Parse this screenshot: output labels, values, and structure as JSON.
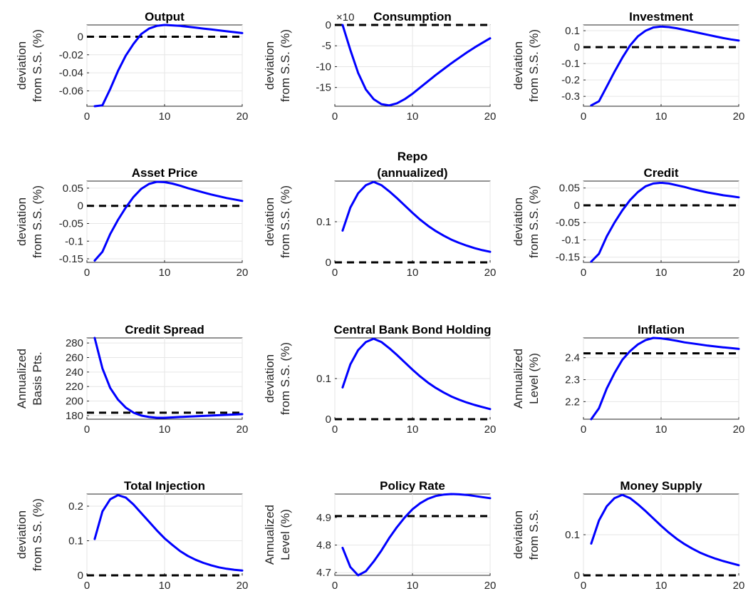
{
  "colors": {
    "series": "#0000ff",
    "reference": "#000000"
  },
  "chart_data": [
    {
      "type": "line",
      "title": [
        "Output"
      ],
      "ylabel": [
        "deviation",
        "from S.S. (%)"
      ],
      "xlim": [
        0,
        20
      ],
      "ylim": [
        -0.077,
        0.013
      ],
      "xticks": [
        0,
        10,
        20
      ],
      "xtick_labels": [
        "0",
        "10",
        "20"
      ],
      "yticks": [
        -0.06,
        -0.04,
        -0.02,
        0
      ],
      "ytick_labels": [
        "-0.06",
        "-0.04",
        "-0.02",
        "0"
      ],
      "grid": true,
      "exponent_label": "",
      "reference": 0,
      "series": [
        {
          "x": [
            1,
            2,
            3,
            4,
            5,
            6,
            7,
            8,
            9,
            10,
            11,
            12,
            13,
            14,
            15,
            16,
            17,
            18,
            19,
            20
          ],
          "y": [
            -0.077,
            -0.076,
            -0.058,
            -0.038,
            -0.021,
            -0.008,
            0.003,
            0.009,
            0.012,
            0.013,
            0.0125,
            0.012,
            0.011,
            0.01,
            0.009,
            0.008,
            0.007,
            0.006,
            0.005,
            0.004
          ]
        }
      ]
    },
    {
      "type": "line",
      "title": [
        "Consumption"
      ],
      "ylabel": [
        "deviation",
        "from S.S. (%)"
      ],
      "xlim": [
        0,
        20
      ],
      "ylim": [
        -19.5,
        0
      ],
      "xticks": [
        0,
        10,
        20
      ],
      "xtick_labels": [
        "0",
        "10",
        "20"
      ],
      "yticks": [
        -15,
        -10,
        -5,
        0
      ],
      "ytick_labels": [
        "-15",
        "-10",
        "-5",
        "0"
      ],
      "grid": true,
      "exponent_label": "×10",
      "reference": 0,
      "series": [
        {
          "x": [
            1,
            2,
            3,
            4,
            5,
            6,
            7,
            8,
            9,
            10,
            11,
            12,
            13,
            14,
            15,
            16,
            17,
            18,
            19,
            20
          ],
          "y": [
            0,
            -6,
            -11.5,
            -15.5,
            -17.8,
            -19,
            -19.3,
            -18.8,
            -17.8,
            -16.5,
            -15,
            -13.5,
            -12,
            -10.6,
            -9.2,
            -7.9,
            -6.6,
            -5.4,
            -4.3,
            -3.2
          ]
        }
      ]
    },
    {
      "type": "line",
      "title": [
        "Investment"
      ],
      "ylabel": [
        "deviation",
        "from S.S. (%)"
      ],
      "xlim": [
        0,
        20
      ],
      "ylim": [
        -0.36,
        0.135
      ],
      "xticks": [
        0,
        10,
        20
      ],
      "xtick_labels": [
        "0",
        "10",
        "20"
      ],
      "yticks": [
        -0.3,
        -0.2,
        -0.1,
        0,
        0.1
      ],
      "ytick_labels": [
        "-0.3",
        "-0.2",
        "-0.1",
        "0",
        "0.1"
      ],
      "grid": true,
      "exponent_label": "",
      "reference": 0,
      "series": [
        {
          "x": [
            1,
            2,
            3,
            4,
            5,
            6,
            7,
            8,
            9,
            10,
            11,
            12,
            13,
            14,
            15,
            16,
            17,
            18,
            19,
            20
          ],
          "y": [
            -0.355,
            -0.33,
            -0.24,
            -0.15,
            -0.065,
            0.01,
            0.065,
            0.1,
            0.12,
            0.125,
            0.122,
            0.115,
            0.105,
            0.095,
            0.085,
            0.075,
            0.065,
            0.055,
            0.047,
            0.04
          ]
        }
      ]
    },
    {
      "type": "line",
      "title": [
        "Asset Price"
      ],
      "ylabel": [
        "deviation",
        "from S.S. (%)"
      ],
      "xlim": [
        0,
        20
      ],
      "ylim": [
        -0.16,
        0.07
      ],
      "xticks": [
        0,
        10,
        20
      ],
      "xtick_labels": [
        "0",
        "10",
        "20"
      ],
      "yticks": [
        -0.15,
        -0.1,
        -0.05,
        0,
        0.05
      ],
      "ytick_labels": [
        "-0.15",
        "-0.1",
        "-0.05",
        "0",
        "0.05"
      ],
      "grid": true,
      "exponent_label": "",
      "reference": 0,
      "series": [
        {
          "x": [
            1,
            2,
            3,
            4,
            5,
            6,
            7,
            8,
            9,
            10,
            11,
            12,
            13,
            14,
            15,
            16,
            17,
            18,
            19,
            20
          ],
          "y": [
            -0.155,
            -0.13,
            -0.08,
            -0.04,
            -0.005,
            0.025,
            0.048,
            0.062,
            0.068,
            0.067,
            0.063,
            0.057,
            0.05,
            0.044,
            0.038,
            0.032,
            0.027,
            0.022,
            0.018,
            0.014
          ]
        }
      ]
    },
    {
      "type": "line",
      "title": [
        "Repo",
        "(annualized)"
      ],
      "ylabel": [
        "deviation",
        "from S.S. (%)"
      ],
      "xlim": [
        0,
        20
      ],
      "ylim": [
        0,
        0.2
      ],
      "xticks": [
        0,
        10,
        20
      ],
      "xtick_labels": [
        "0",
        "10",
        "20"
      ],
      "yticks": [
        0,
        0.1
      ],
      "ytick_labels": [
        "0",
        "0.1"
      ],
      "grid": true,
      "exponent_label": "",
      "reference": 0,
      "series": [
        {
          "x": [
            1,
            2,
            3,
            4,
            5,
            6,
            7,
            8,
            9,
            10,
            11,
            12,
            13,
            14,
            15,
            16,
            17,
            18,
            19,
            20
          ],
          "y": [
            0.078,
            0.135,
            0.17,
            0.19,
            0.198,
            0.19,
            0.175,
            0.158,
            0.14,
            0.122,
            0.105,
            0.09,
            0.077,
            0.066,
            0.056,
            0.048,
            0.041,
            0.035,
            0.03,
            0.026
          ]
        }
      ]
    },
    {
      "type": "line",
      "title": [
        "Credit"
      ],
      "ylabel": [
        "deviation",
        "from S.S. (%)"
      ],
      "xlim": [
        0,
        20
      ],
      "ylim": [
        -0.165,
        0.07
      ],
      "xticks": [
        0,
        10,
        20
      ],
      "xtick_labels": [
        "0",
        "10",
        "20"
      ],
      "yticks": [
        -0.15,
        -0.1,
        -0.05,
        0,
        0.05
      ],
      "ytick_labels": [
        "-0.15",
        "-0.1",
        "-0.05",
        "0",
        "0.05"
      ],
      "grid": true,
      "exponent_label": "",
      "reference": 0,
      "series": [
        {
          "x": [
            1,
            2,
            3,
            4,
            5,
            6,
            7,
            8,
            9,
            10,
            11,
            12,
            13,
            14,
            15,
            16,
            17,
            18,
            19,
            20
          ],
          "y": [
            -0.163,
            -0.14,
            -0.09,
            -0.05,
            -0.015,
            0.015,
            0.038,
            0.055,
            0.063,
            0.065,
            0.063,
            0.058,
            0.053,
            0.047,
            0.042,
            0.037,
            0.033,
            0.029,
            0.026,
            0.023
          ]
        }
      ]
    },
    {
      "type": "line",
      "title": [
        "Credit Spread"
      ],
      "ylabel": [
        "Annualized",
        "Basis Pts."
      ],
      "xlim": [
        0,
        20
      ],
      "ylim": [
        175,
        287
      ],
      "xticks": [
        0,
        10,
        20
      ],
      "xtick_labels": [
        "0",
        "10",
        "20"
      ],
      "yticks": [
        180,
        200,
        220,
        240,
        260,
        280
      ],
      "ytick_labels": [
        "180",
        "200",
        "220",
        "240",
        "260",
        "280"
      ],
      "grid": true,
      "exponent_label": "",
      "reference": 184,
      "series": [
        {
          "x": [
            1,
            2,
            3,
            4,
            5,
            6,
            7,
            8,
            9,
            10,
            11,
            12,
            13,
            14,
            15,
            16,
            17,
            18,
            19,
            20
          ],
          "y": [
            287,
            245,
            218,
            202,
            191,
            184,
            180,
            178,
            177,
            177,
            177.5,
            178,
            178.5,
            179,
            179.5,
            180,
            180.5,
            181,
            181.5,
            182
          ]
        }
      ]
    },
    {
      "type": "line",
      "title": [
        "Central Bank Bond Holding"
      ],
      "ylabel": [
        "deviation",
        "from S.S. (%)"
      ],
      "xlim": [
        0,
        20
      ],
      "ylim": [
        0,
        0.2
      ],
      "xticks": [
        0,
        10,
        20
      ],
      "xtick_labels": [
        "0",
        "10",
        "20"
      ],
      "yticks": [
        0,
        0.1
      ],
      "ytick_labels": [
        "0",
        "0.1"
      ],
      "grid": true,
      "exponent_label": "",
      "reference": 0,
      "series": [
        {
          "x": [
            1,
            2,
            3,
            4,
            5,
            6,
            7,
            8,
            9,
            10,
            11,
            12,
            13,
            14,
            15,
            16,
            17,
            18,
            19,
            20
          ],
          "y": [
            0.078,
            0.135,
            0.17,
            0.19,
            0.198,
            0.19,
            0.175,
            0.158,
            0.14,
            0.122,
            0.105,
            0.09,
            0.077,
            0.066,
            0.056,
            0.048,
            0.041,
            0.035,
            0.03,
            0.025
          ]
        }
      ]
    },
    {
      "type": "line",
      "title": [
        "Inflation"
      ],
      "ylabel": [
        "Annualized",
        "Level (%)"
      ],
      "xlim": [
        0,
        20
      ],
      "ylim": [
        2.12,
        2.49
      ],
      "xticks": [
        0,
        10,
        20
      ],
      "xtick_labels": [
        "0",
        "10",
        "20"
      ],
      "yticks": [
        2.2,
        2.3,
        2.4
      ],
      "ytick_labels": [
        "2.2",
        "2.3",
        "2.4"
      ],
      "grid": true,
      "exponent_label": "",
      "reference": 2.42,
      "series": [
        {
          "x": [
            1,
            2,
            3,
            4,
            5,
            6,
            7,
            8,
            9,
            10,
            11,
            12,
            13,
            14,
            15,
            16,
            17,
            18,
            19,
            20
          ],
          "y": [
            2.12,
            2.17,
            2.26,
            2.33,
            2.39,
            2.43,
            2.46,
            2.48,
            2.49,
            2.488,
            2.483,
            2.477,
            2.47,
            2.465,
            2.46,
            2.455,
            2.451,
            2.447,
            2.444,
            2.44
          ]
        }
      ]
    },
    {
      "type": "line",
      "title": [
        "Total Injection"
      ],
      "ylabel": [
        "deviation",
        "from S.S. (%)"
      ],
      "xlim": [
        0,
        20
      ],
      "ylim": [
        0,
        0.235
      ],
      "xticks": [
        0,
        10,
        20
      ],
      "xtick_labels": [
        "0",
        "10",
        "20"
      ],
      "yticks": [
        0,
        0.1,
        0.2
      ],
      "ytick_labels": [
        "0",
        "0.1",
        "0.2"
      ],
      "grid": true,
      "exponent_label": "",
      "reference": 0,
      "series": [
        {
          "x": [
            1,
            2,
            3,
            4,
            5,
            6,
            7,
            8,
            9,
            10,
            11,
            12,
            13,
            14,
            15,
            16,
            17,
            18,
            19,
            20
          ],
          "y": [
            0.105,
            0.185,
            0.22,
            0.232,
            0.225,
            0.205,
            0.18,
            0.155,
            0.13,
            0.107,
            0.088,
            0.07,
            0.056,
            0.045,
            0.036,
            0.029,
            0.023,
            0.019,
            0.016,
            0.014
          ]
        }
      ]
    },
    {
      "type": "line",
      "title": [
        "Policy Rate"
      ],
      "ylabel": [
        "Annualized",
        "Level (%)"
      ],
      "xlim": [
        0,
        20
      ],
      "ylim": [
        4.69,
        4.985
      ],
      "xticks": [
        0,
        10,
        20
      ],
      "xtick_labels": [
        "0",
        "10",
        "20"
      ],
      "yticks": [
        4.7,
        4.8,
        4.9
      ],
      "ytick_labels": [
        "4.7",
        "4.8",
        "4.9"
      ],
      "grid": true,
      "exponent_label": "",
      "reference": 4.905,
      "series": [
        {
          "x": [
            1,
            2,
            3,
            4,
            5,
            6,
            7,
            8,
            9,
            10,
            11,
            12,
            13,
            14,
            15,
            16,
            17,
            18,
            19,
            20
          ],
          "y": [
            4.79,
            4.72,
            4.69,
            4.705,
            4.74,
            4.78,
            4.825,
            4.865,
            4.9,
            4.93,
            4.952,
            4.968,
            4.978,
            4.983,
            4.985,
            4.984,
            4.982,
            4.978,
            4.974,
            4.97
          ]
        }
      ]
    },
    {
      "type": "line",
      "title": [
        "Money Supply"
      ],
      "ylabel": [
        "deviation",
        "from S.S."
      ],
      "xlim": [
        0,
        20
      ],
      "ylim": [
        0,
        0.2
      ],
      "xticks": [
        0,
        10,
        20
      ],
      "xtick_labels": [
        "0",
        "10",
        "20"
      ],
      "yticks": [
        0,
        0.1
      ],
      "ytick_labels": [
        "0",
        "0.1"
      ],
      "grid": true,
      "exponent_label": "",
      "reference": 0,
      "series": [
        {
          "x": [
            1,
            2,
            3,
            4,
            5,
            6,
            7,
            8,
            9,
            10,
            11,
            12,
            13,
            14,
            15,
            16,
            17,
            18,
            19,
            20
          ],
          "y": [
            0.078,
            0.135,
            0.17,
            0.19,
            0.198,
            0.19,
            0.175,
            0.158,
            0.14,
            0.122,
            0.105,
            0.09,
            0.077,
            0.066,
            0.056,
            0.048,
            0.041,
            0.035,
            0.03,
            0.025
          ]
        }
      ]
    }
  ]
}
